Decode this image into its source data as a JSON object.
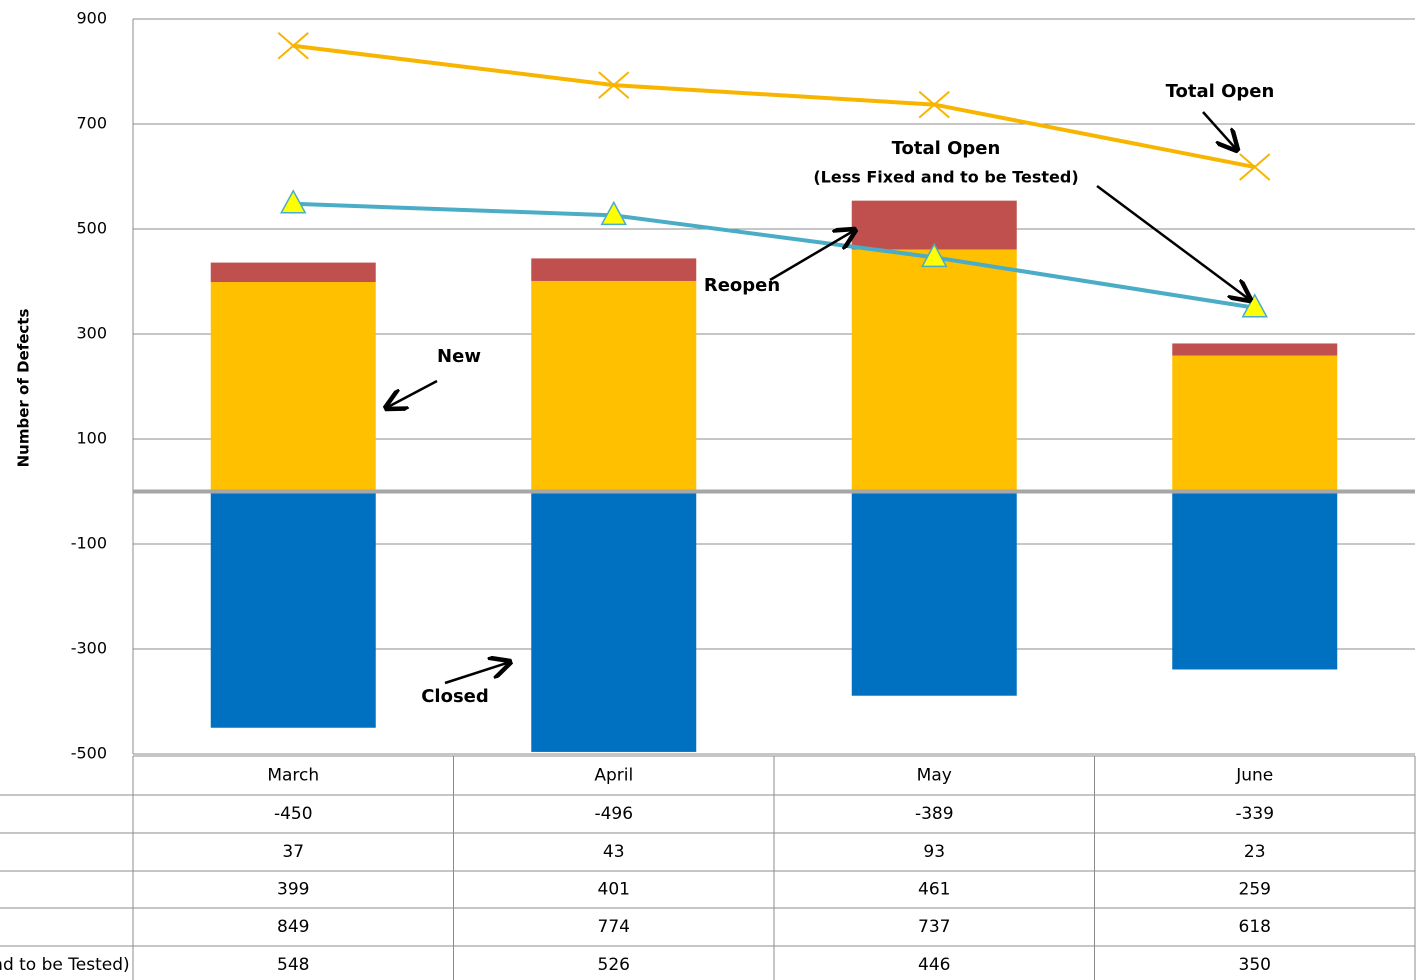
{
  "chart_data": {
    "type": "bar",
    "y_label": "Number of Defects",
    "categories": [
      "March",
      "April",
      "May",
      "June"
    ],
    "series": [
      {
        "name": "Closed",
        "type": "bar",
        "color": "#0070c0",
        "values": [
          -450,
          -496,
          -389,
          -339
        ]
      },
      {
        "name": "Reopen",
        "type": "bar",
        "color": "#c0504d",
        "values": [
          37,
          43,
          93,
          23
        ]
      },
      {
        "name": "New",
        "type": "bar",
        "color": "#ffc000",
        "values": [
          399,
          401,
          461,
          259
        ]
      },
      {
        "name": "Total Open",
        "type": "line",
        "color": "#f8b500",
        "values": [
          849,
          774,
          737,
          618
        ]
      },
      {
        "name": "Total Open (Less Fixed and to be Tested)",
        "type": "line",
        "color": "#4bacc6",
        "values": [
          548,
          526,
          446,
          350
        ]
      }
    ],
    "ylim": [
      -500,
      900
    ],
    "yticks": [
      900,
      700,
      500,
      300,
      100,
      -100,
      -300,
      -500
    ],
    "grid": true,
    "annotations": [
      "Total Open",
      "Total Open",
      "(Less Fixed and to be Tested)",
      "Reopen",
      "New",
      "Closed"
    ]
  }
}
